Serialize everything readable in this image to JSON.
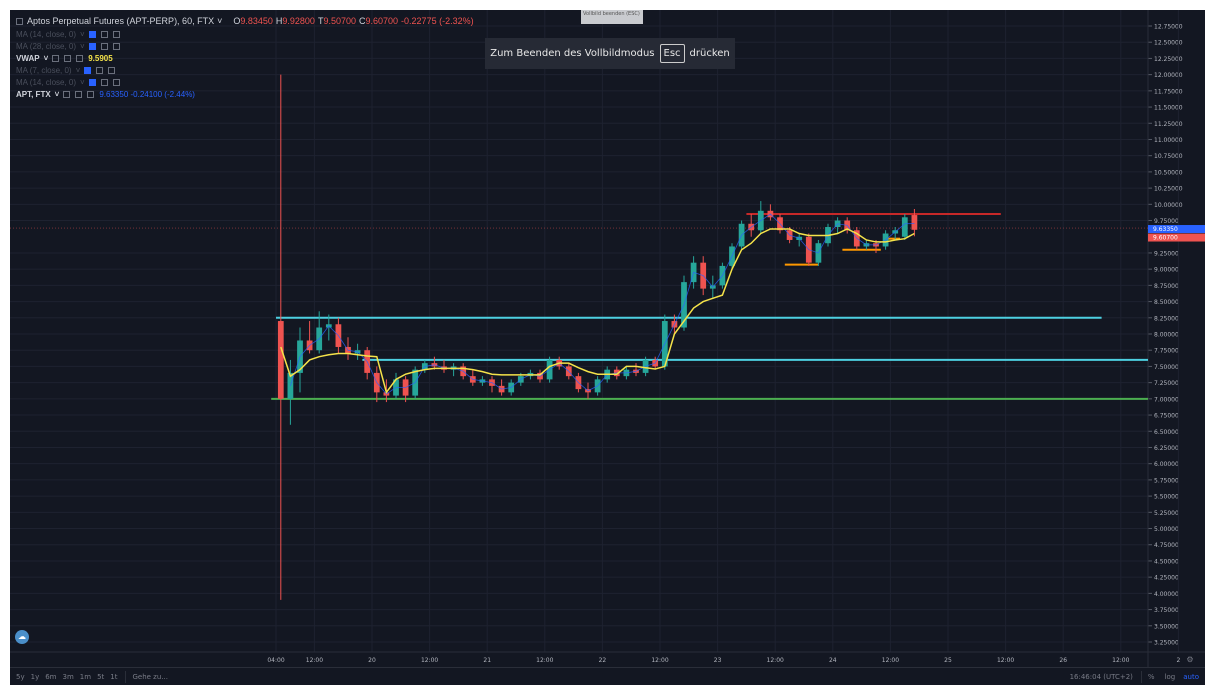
{
  "header": {
    "symbol": "Aptos Perpetual Futures (APT-PERP), 60, FTX",
    "o_label": "O",
    "o": "9.83450",
    "h_label": "H",
    "h": "9.92800",
    "l_label": "T",
    "l": "9.50700",
    "c_label": "C",
    "c": "9.60700",
    "change": "-0.22775 (-2.32%)"
  },
  "indicators": [
    {
      "name": "MA (14, close, 0)",
      "value": ""
    },
    {
      "name": "MA (28, close, 0)",
      "value": ""
    },
    {
      "name": "VWAP",
      "value": "9.5905"
    },
    {
      "name": "MA (7, close, 0)",
      "value": ""
    },
    {
      "name": "MA (14, close, 0)",
      "value": ""
    },
    {
      "name": "APT, FTX",
      "value": "9.63350  -0.24100 (-2.44%)"
    }
  ],
  "fullscreen": {
    "message": "Zum Beenden des Vollbildmodus",
    "key": "Esc",
    "suffix": "drücken",
    "tooltip": "Vollbild beenden (ESC)"
  },
  "bottom_bar": {
    "ranges": [
      "5y",
      "1y",
      "6m",
      "3m",
      "1m",
      "5t",
      "1t"
    ],
    "goto": "Gehe zu...",
    "time": "16:46:04 (UTC+2)",
    "percent": "%",
    "log": "log",
    "auto": "auto"
  },
  "colors": {
    "bg": "#131722",
    "grid": "#1e2230",
    "up": "#26a69a",
    "down": "#ef5350",
    "vwap": "#f5e34a",
    "ma": "#2962ff",
    "cyan": "#4dd0e1",
    "green": "#4caf50",
    "red_line": "#c62828",
    "orange": "#ff9800"
  },
  "chart_data": {
    "type": "candlestick",
    "interval_hours": 2,
    "start": "19 04:00",
    "price_ticks": [
      "12.75000",
      "12.50000",
      "12.25000",
      "12.00000",
      "11.75000",
      "11.50000",
      "11.25000",
      "11.00000",
      "10.75000",
      "10.50000",
      "10.25000",
      "10.00000",
      "9.75000",
      "9.25000",
      "9.00000",
      "8.75000",
      "8.50000",
      "8.25000",
      "8.00000",
      "7.75000",
      "7.50000",
      "7.25000",
      "7.00000",
      "6.75000",
      "6.50000",
      "6.25000",
      "6.00000",
      "5.75000",
      "5.50000",
      "5.25000",
      "5.00000",
      "4.75000",
      "4.50000",
      "4.25000",
      "4.00000",
      "3.75000",
      "3.50000",
      "3.25000"
    ],
    "time_ticks": [
      {
        "h": 0,
        "label": "04:00"
      },
      {
        "h": 8,
        "label": "12:00"
      },
      {
        "h": 20,
        "label": "20"
      },
      {
        "h": 32,
        "label": "12:00"
      },
      {
        "h": 44,
        "label": "21"
      },
      {
        "h": 56,
        "label": "12:00"
      },
      {
        "h": 68,
        "label": "22"
      },
      {
        "h": 80,
        "label": "12:00"
      },
      {
        "h": 92,
        "label": "23"
      },
      {
        "h": 104,
        "label": "12:00"
      },
      {
        "h": 116,
        "label": "24"
      },
      {
        "h": 128,
        "label": "12:00"
      },
      {
        "h": 140,
        "label": "25"
      },
      {
        "h": 152,
        "label": "12:00"
      },
      {
        "h": 164,
        "label": "26"
      },
      {
        "h": 176,
        "label": "12:00"
      },
      {
        "h": 188,
        "label": "2"
      }
    ],
    "ylim": [
      3.25,
      12.75
    ],
    "ohlc": [
      [
        8.2,
        12.0,
        3.9,
        7.0
      ],
      [
        7.0,
        7.6,
        6.6,
        7.4
      ],
      [
        7.4,
        8.1,
        7.1,
        7.9
      ],
      [
        7.9,
        8.2,
        7.7,
        7.75
      ],
      [
        7.75,
        8.35,
        7.7,
        8.1
      ],
      [
        8.1,
        8.3,
        7.9,
        8.15
      ],
      [
        8.15,
        8.25,
        7.7,
        7.8
      ],
      [
        7.8,
        7.95,
        7.6,
        7.7
      ],
      [
        7.7,
        7.85,
        7.6,
        7.75
      ],
      [
        7.75,
        7.8,
        7.3,
        7.4
      ],
      [
        7.4,
        7.5,
        6.95,
        7.1
      ],
      [
        7.1,
        7.3,
        6.95,
        7.05
      ],
      [
        7.05,
        7.4,
        7.0,
        7.3
      ],
      [
        7.3,
        7.35,
        6.95,
        7.05
      ],
      [
        7.05,
        7.5,
        7.0,
        7.45
      ],
      [
        7.45,
        7.6,
        7.4,
        7.55
      ],
      [
        7.55,
        7.65,
        7.45,
        7.5
      ],
      [
        7.5,
        7.6,
        7.4,
        7.45
      ],
      [
        7.45,
        7.55,
        7.35,
        7.5
      ],
      [
        7.5,
        7.55,
        7.3,
        7.35
      ],
      [
        7.35,
        7.45,
        7.2,
        7.25
      ],
      [
        7.25,
        7.35,
        7.2,
        7.3
      ],
      [
        7.3,
        7.35,
        7.1,
        7.2
      ],
      [
        7.2,
        7.3,
        7.05,
        7.1
      ],
      [
        7.1,
        7.3,
        7.05,
        7.25
      ],
      [
        7.25,
        7.4,
        7.2,
        7.35
      ],
      [
        7.35,
        7.45,
        7.3,
        7.4
      ],
      [
        7.4,
        7.45,
        7.25,
        7.3
      ],
      [
        7.3,
        7.65,
        7.25,
        7.6
      ],
      [
        7.6,
        7.65,
        7.45,
        7.5
      ],
      [
        7.5,
        7.55,
        7.3,
        7.35
      ],
      [
        7.35,
        7.4,
        7.1,
        7.15
      ],
      [
        7.15,
        7.25,
        7.0,
        7.1
      ],
      [
        7.1,
        7.35,
        7.05,
        7.3
      ],
      [
        7.3,
        7.5,
        7.25,
        7.45
      ],
      [
        7.45,
        7.5,
        7.3,
        7.35
      ],
      [
        7.35,
        7.5,
        7.3,
        7.45
      ],
      [
        7.45,
        7.55,
        7.35,
        7.4
      ],
      [
        7.4,
        7.65,
        7.35,
        7.6
      ],
      [
        7.6,
        7.65,
        7.45,
        7.5
      ],
      [
        7.5,
        8.3,
        7.45,
        8.2
      ],
      [
        8.2,
        8.3,
        8.0,
        8.1
      ],
      [
        8.1,
        8.9,
        8.05,
        8.8
      ],
      [
        8.8,
        9.2,
        8.7,
        9.1
      ],
      [
        9.1,
        9.2,
        8.6,
        8.7
      ],
      [
        8.7,
        8.9,
        8.55,
        8.75
      ],
      [
        8.75,
        9.1,
        8.7,
        9.05
      ],
      [
        9.05,
        9.4,
        9.0,
        9.35
      ],
      [
        9.35,
        9.75,
        9.3,
        9.7
      ],
      [
        9.7,
        9.85,
        9.5,
        9.6
      ],
      [
        9.6,
        10.05,
        9.55,
        9.9
      ],
      [
        9.9,
        10.0,
        9.75,
        9.8
      ],
      [
        9.8,
        9.85,
        9.55,
        9.6
      ],
      [
        9.6,
        9.65,
        9.4,
        9.45
      ],
      [
        9.45,
        9.55,
        9.35,
        9.5
      ],
      [
        9.5,
        9.55,
        9.05,
        9.1
      ],
      [
        9.1,
        9.45,
        9.05,
        9.4
      ],
      [
        9.4,
        9.7,
        9.35,
        9.65
      ],
      [
        9.65,
        9.8,
        9.55,
        9.75
      ],
      [
        9.75,
        9.8,
        9.55,
        9.6
      ],
      [
        9.6,
        9.65,
        9.3,
        9.35
      ],
      [
        9.35,
        9.45,
        9.3,
        9.4
      ],
      [
        9.4,
        9.45,
        9.25,
        9.35
      ],
      [
        9.35,
        9.6,
        9.3,
        9.55
      ],
      [
        9.55,
        9.65,
        9.45,
        9.6
      ],
      [
        9.5,
        9.85,
        9.45,
        9.8
      ],
      [
        9.8345,
        9.928,
        9.507,
        9.607
      ]
    ],
    "vwap": [
      7.8,
      7.35,
      7.45,
      7.6,
      7.65,
      7.68,
      7.7,
      7.7,
      7.68,
      7.66,
      7.65,
      7.1,
      7.3,
      7.38,
      7.42,
      7.45,
      7.47,
      7.47,
      7.47,
      7.47,
      7.45,
      7.42,
      7.38,
      7.37,
      7.37,
      7.37,
      7.37,
      7.37,
      7.5,
      7.55,
      7.55,
      7.48,
      7.42,
      7.38,
      7.38,
      7.38,
      7.5,
      7.5,
      7.48,
      7.46,
      7.5,
      8.0,
      8.2,
      8.4,
      8.5,
      8.55,
      8.6,
      9.0,
      9.3,
      9.4,
      9.55,
      9.62,
      9.62,
      9.62,
      9.55,
      9.52,
      9.52,
      9.52,
      9.55,
      9.62,
      9.55,
      9.45,
      9.42,
      9.42,
      9.45,
      9.47,
      9.55
    ],
    "horizontal_lines": [
      {
        "price": 8.25,
        "from_h": 0,
        "to_h": 172,
        "color": "#4dd0e1"
      },
      {
        "price": 7.6,
        "from_h": 18,
        "to_h": 999,
        "color": "#4dd0e1"
      },
      {
        "price": 7.0,
        "from_h": -1,
        "to_h": 999,
        "color": "#4caf50"
      },
      {
        "price": 9.85,
        "from_h": 98,
        "to_h": 151,
        "color": "#c62828"
      },
      {
        "price": 9.07,
        "from_h": 106,
        "to_h": 113,
        "color": "#ff9800"
      },
      {
        "price": 9.3,
        "from_h": 118,
        "to_h": 126,
        "color": "#ff9800"
      },
      {
        "price": 9.47,
        "from_h": 127,
        "to_h": 130,
        "color": "#ff9800"
      }
    ],
    "last_price": {
      "value": "9.63350",
      "price": 9.6335,
      "color": "#2962ff"
    },
    "close_price": {
      "value": "9.60700",
      "price": 9.607,
      "color": "#ef5350"
    }
  }
}
